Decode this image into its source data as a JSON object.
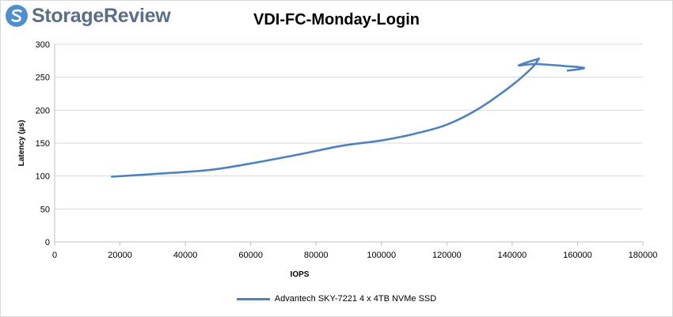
{
  "brand": {
    "name": "StorageReview",
    "logo_color": "#4f8fcf",
    "text_color": "#5a6e88"
  },
  "chart_data": {
    "type": "line",
    "title": "VDI-FC-Monday-Login",
    "xlabel": "IOPS",
    "ylabel": "Latency (µs)",
    "xlim": [
      0,
      180000
    ],
    "ylim": [
      0,
      300
    ],
    "xticks": [
      0,
      20000,
      40000,
      60000,
      80000,
      100000,
      120000,
      140000,
      160000,
      180000
    ],
    "yticks": [
      0,
      50,
      100,
      150,
      200,
      250,
      300
    ],
    "grid": "horizontal",
    "legend_position": "bottom",
    "series": [
      {
        "name": "Advantech SKY-7221 4 x 4TB NVMe SSD",
        "color": "#4f81bd",
        "x": [
          17500,
          30000,
          47000,
          60000,
          75000,
          88000,
          100000,
          110000,
          120000,
          130000,
          140000,
          146000,
          148000,
          147500,
          142000,
          147000,
          156000,
          162000,
          157000
        ],
        "y": [
          99,
          103,
          109,
          119,
          133,
          146,
          154,
          164,
          178,
          203,
          238,
          264,
          277,
          277,
          268,
          270,
          267,
          264,
          260
        ]
      }
    ]
  }
}
